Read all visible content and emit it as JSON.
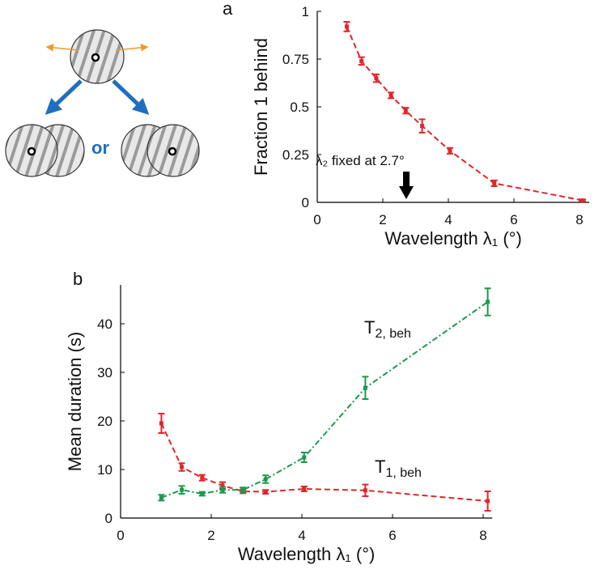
{
  "chart_data": [
    {
      "type": "line",
      "panel_label": "a",
      "y_label": "Fraction 1 behind",
      "x_label": "Wavelength λ₁ (°)",
      "xlim": [
        0,
        8.3
      ],
      "ylim": [
        0,
        1
      ],
      "xticks": [
        0,
        2,
        4,
        6,
        8
      ],
      "yticks": [
        0,
        0.25,
        0.5,
        0.75,
        1
      ],
      "annotation": "λ₂ fixed at 2.7°",
      "series": [
        {
          "color": "#e0262b",
          "x": [
            0.9,
            1.35,
            1.8,
            2.25,
            2.7,
            3.2,
            4.05,
            5.4,
            8.1
          ],
          "values": [
            0.92,
            0.74,
            0.65,
            0.56,
            0.48,
            0.4,
            0.27,
            0.1,
            0.01
          ],
          "errors": [
            0.025,
            0.02,
            0.02,
            0.015,
            0.015,
            0.035,
            0.015,
            0.015,
            0.005
          ]
        }
      ]
    },
    {
      "type": "line",
      "panel_label": "b",
      "y_label": "Mean duration (s)",
      "x_label": "Wavelength λ₁ (°)",
      "xlim": [
        0,
        8.2
      ],
      "ylim": [
        0,
        48
      ],
      "xticks": [
        0,
        2,
        4,
        6,
        8
      ],
      "yticks": [
        0,
        10,
        20,
        30,
        40
      ],
      "series": [
        {
          "name": "T",
          "name_sub": "1, beh",
          "color": "#e0262b",
          "x": [
            0.9,
            1.35,
            1.8,
            2.25,
            2.7,
            3.2,
            4.05,
            5.4,
            8.1
          ],
          "values": [
            19.5,
            10.5,
            8.3,
            6.7,
            5.5,
            5.4,
            6.0,
            5.7,
            3.5
          ],
          "errors": [
            2,
            0.8,
            0.6,
            0.7,
            0.4,
            0.4,
            0.5,
            1.2,
            2
          ]
        },
        {
          "name": "T",
          "name_sub": "2, beh",
          "color": "#1a9a4a",
          "x": [
            0.9,
            1.35,
            1.8,
            2.25,
            2.7,
            3.2,
            4.05,
            5.4,
            8.1
          ],
          "values": [
            4.2,
            5.8,
            5.0,
            5.8,
            5.8,
            8.0,
            12.5,
            26.8,
            44.5
          ],
          "errors": [
            0.6,
            0.8,
            0.4,
            0.6,
            0.5,
            0.8,
            1,
            2.3,
            2.8
          ]
        }
      ]
    }
  ],
  "diagram": {
    "connector_text": "or"
  }
}
